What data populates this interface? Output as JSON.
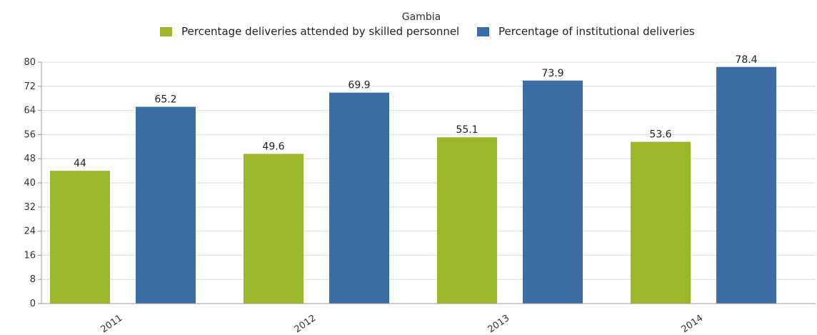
{
  "chart_data": {
    "type": "bar",
    "title": "Gambia",
    "categories": [
      "2011",
      "2012",
      "2013",
      "2014"
    ],
    "series": [
      {
        "name": "Percentage deliveries attended by skilled personnel",
        "values": [
          44,
          49.6,
          55.1,
          53.6
        ],
        "color": "#9bb82b"
      },
      {
        "name": "Percentage of institutional deliveries",
        "values": [
          65.2,
          69.9,
          73.9,
          78.4
        ],
        "color": "#3b6ea5"
      }
    ],
    "yticks": [
      0,
      8,
      16,
      24,
      32,
      40,
      48,
      56,
      64,
      72,
      80
    ],
    "ylim": [
      0,
      80
    ],
    "grid": true,
    "legend_position": "top"
  }
}
